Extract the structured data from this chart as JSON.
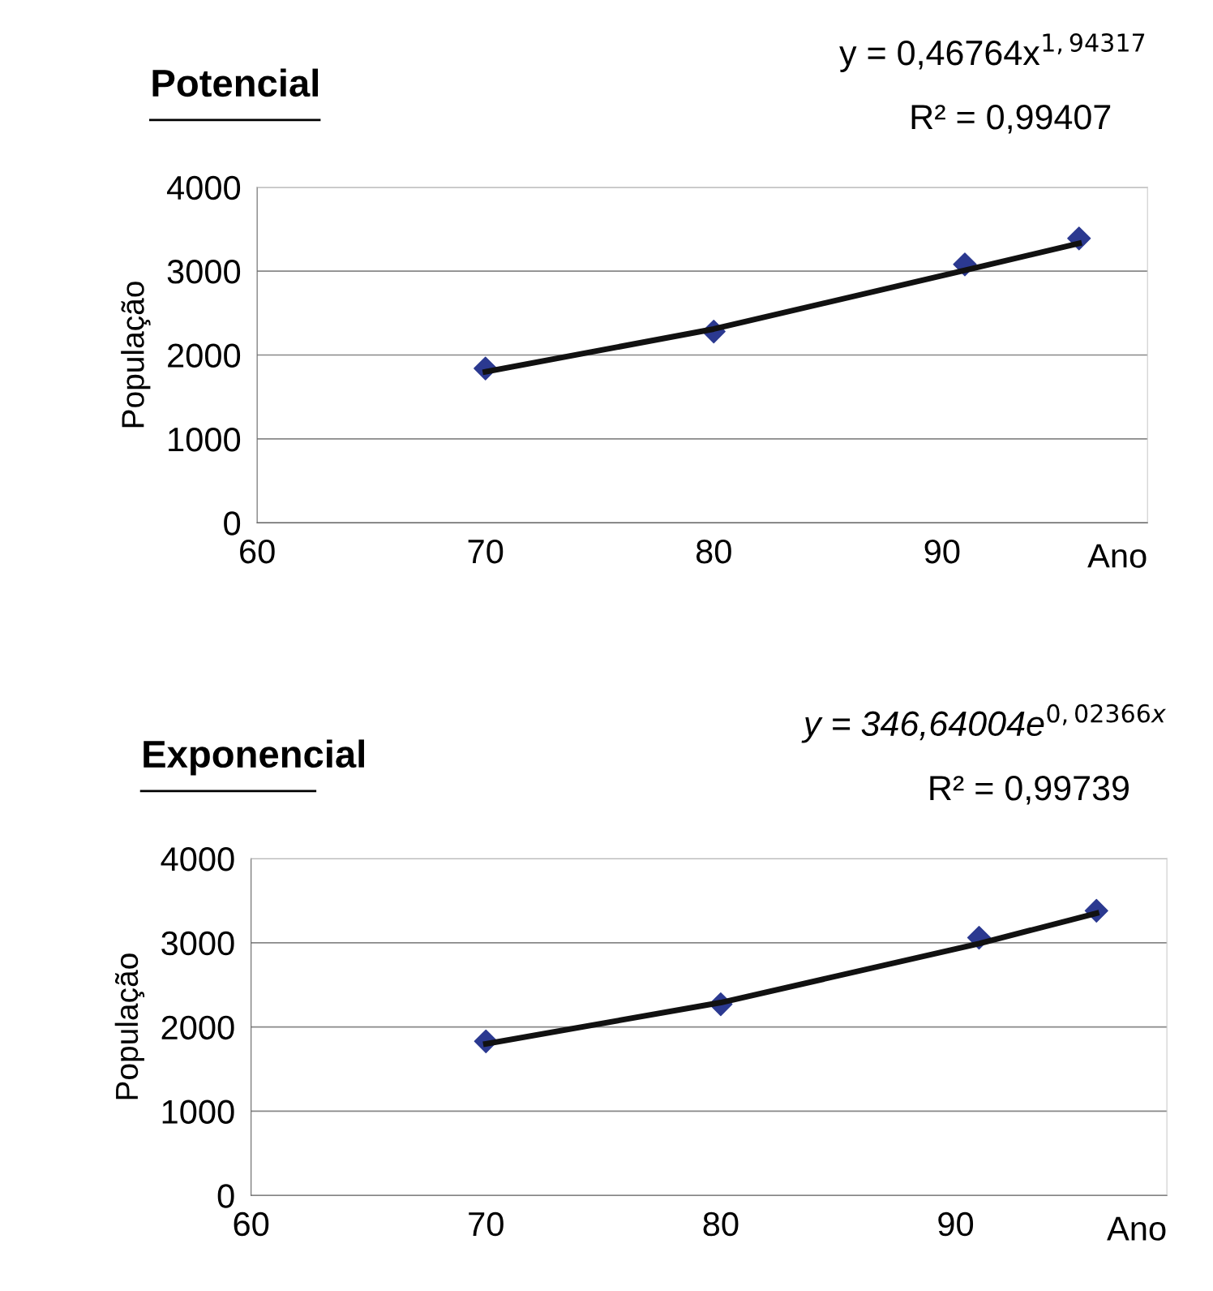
{
  "chart_data": [
    {
      "type": "line",
      "title": "Potencial",
      "xlabel": "Ano",
      "ylabel": "População",
      "x": [
        70,
        80,
        91,
        96
      ],
      "xlim": [
        60,
        99
      ],
      "xticks": [
        60,
        70,
        80,
        90
      ],
      "ylim": [
        0,
        4000
      ],
      "yticks": [
        0,
        1000,
        2000,
        3000,
        4000
      ],
      "grid": "y",
      "legend": false,
      "annotations": [
        "y = 0,46764x$^{1,94317}$",
        "R² = 0,99407"
      ],
      "series": [
        {
          "color": "#111111",
          "values": [
            1800,
            2310,
            3010,
            3330
          ],
          "marker": "none"
        },
        {
          "type": "scatter",
          "color": "#2b3990",
          "values": [
            1840,
            2280,
            3080,
            3390
          ],
          "marker": "diamond"
        }
      ]
    },
    {
      "type": "line",
      "title": "Exponencial",
      "xlabel": "Ano",
      "ylabel": "População",
      "x": [
        70,
        80,
        91,
        96
      ],
      "xlim": [
        60,
        99
      ],
      "xticks": [
        60,
        70,
        80,
        90
      ],
      "ylim": [
        0,
        4000
      ],
      "yticks": [
        0,
        1000,
        2000,
        3000,
        4000
      ],
      "grid": "y",
      "legend": false,
      "annotations": [
        "y = 346,64004e$^{0,02366x}$",
        "R² = 0,99739"
      ],
      "series": [
        {
          "color": "#111111",
          "values": [
            1800,
            2290,
            2990,
            3350
          ],
          "marker": "none"
        },
        {
          "type": "scatter",
          "color": "#2b3990",
          "values": [
            1830,
            2270,
            3060,
            3380
          ],
          "marker": "diamond"
        }
      ]
    }
  ]
}
